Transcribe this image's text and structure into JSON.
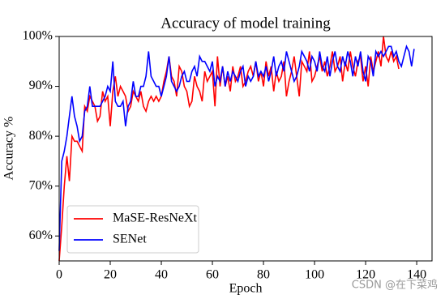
{
  "chart_data": {
    "type": "line",
    "title": "Accuracy of model training",
    "x_label": "Epoch",
    "y_label": "Accuracy %",
    "x": [
      0,
      1,
      2,
      3,
      4,
      5,
      6,
      7,
      8,
      9,
      10,
      11,
      12,
      13,
      14,
      15,
      16,
      17,
      18,
      19,
      20,
      21,
      22,
      23,
      24,
      25,
      26,
      27,
      28,
      29,
      30,
      31,
      32,
      33,
      34,
      35,
      36,
      37,
      38,
      39,
      40,
      41,
      42,
      43,
      44,
      45,
      46,
      47,
      48,
      49,
      50,
      51,
      52,
      53,
      54,
      55,
      56,
      57,
      58,
      59,
      60,
      61,
      62,
      63,
      64,
      65,
      66,
      67,
      68,
      69,
      70,
      71,
      72,
      73,
      74,
      75,
      76,
      77,
      78,
      79,
      80,
      81,
      82,
      83,
      84,
      85,
      86,
      87,
      88,
      89,
      90,
      91,
      92,
      93,
      94,
      95,
      96,
      97,
      98,
      99,
      100,
      101,
      102,
      103,
      104,
      105,
      106,
      107,
      108,
      109,
      110,
      111,
      112,
      113,
      114,
      115,
      116,
      117,
      118,
      119,
      120,
      121,
      122,
      123,
      124,
      125,
      126,
      127,
      128,
      129,
      130,
      131,
      132,
      133,
      134,
      135,
      136,
      137,
      138,
      139
    ],
    "series": [
      {
        "name": "MaSE-ResNeXt",
        "color": "#ff0000",
        "values": [
          55,
          62,
          70,
          76,
          71,
          80,
          79,
          79,
          78,
          77,
          86,
          85,
          88,
          87,
          86,
          83,
          84,
          89,
          87,
          88,
          82,
          89,
          92,
          88,
          90,
          89,
          88,
          85,
          86,
          89,
          88,
          87,
          89,
          86,
          85,
          87,
          88,
          87,
          88,
          87,
          88,
          91,
          93,
          96,
          92,
          91,
          88,
          94,
          93,
          90,
          89,
          86,
          87,
          92,
          90,
          89,
          87,
          93,
          91,
          92,
          93,
          86,
          96,
          90,
          94,
          90,
          92,
          89,
          94,
          91,
          92,
          94,
          90,
          91,
          93,
          94,
          92,
          95,
          91,
          93,
          90,
          95,
          92,
          94,
          89,
          93,
          91,
          92,
          95,
          88,
          91,
          93,
          96,
          92,
          88,
          95,
          94,
          93,
          97,
          91,
          92,
          94,
          96,
          93,
          95,
          92,
          94,
          97,
          93,
          94,
          96,
          91,
          95,
          93,
          97,
          94,
          92,
          95,
          96,
          91,
          94,
          90,
          96,
          93,
          95,
          97,
          94,
          100,
          96,
          95,
          97,
          95,
          96,
          93.5,
          null,
          null,
          null,
          null,
          null,
          null
        ]
      },
      {
        "name": "SENet",
        "color": "#0000ff",
        "values": [
          57,
          75,
          77,
          80,
          84,
          88,
          84,
          82,
          79,
          80,
          85,
          86,
          90,
          86,
          86,
          86,
          86,
          87,
          88,
          90,
          89,
          95,
          87,
          86,
          86,
          87,
          82,
          86,
          87,
          91,
          88,
          88,
          90,
          90,
          92,
          97,
          92,
          91,
          90,
          90,
          88,
          90,
          92,
          96,
          91,
          90,
          89,
          90,
          92,
          93,
          91,
          91,
          93,
          94,
          92,
          96,
          95,
          95,
          94,
          93,
          95,
          90,
          92,
          91,
          94,
          90,
          93,
          91,
          93,
          92,
          91,
          93,
          94,
          90,
          92,
          91,
          92,
          95,
          92,
          93,
          92,
          94,
          91,
          93,
          96,
          92,
          94,
          95,
          93,
          97,
          95,
          93,
          91,
          92,
          94,
          97,
          96,
          95,
          93,
          96,
          95,
          93,
          97,
          94,
          93,
          96,
          92,
          95,
          97,
          94,
          93,
          96,
          94,
          97,
          95,
          92,
          96,
          94,
          97,
          93,
          91,
          96,
          95,
          92,
          97,
          96,
          97,
          96,
          97,
          98,
          98,
          96,
          97,
          95,
          94,
          96,
          98,
          97,
          94,
          97.5
        ]
      }
    ],
    "xlim": [
      0,
      146
    ],
    "ylim": [
      55,
      100
    ],
    "xticks": [
      0,
      20,
      40,
      60,
      80,
      100,
      120,
      140
    ],
    "yticks": [
      {
        "value": 60,
        "label": "60%"
      },
      {
        "value": 70,
        "label": "70%"
      },
      {
        "value": 80,
        "label": "80%"
      },
      {
        "value": 90,
        "label": "90%"
      },
      {
        "value": 100,
        "label": "100%"
      }
    ],
    "legend_position": "lower left",
    "watermark": "CSDN @在下菜鸡"
  }
}
